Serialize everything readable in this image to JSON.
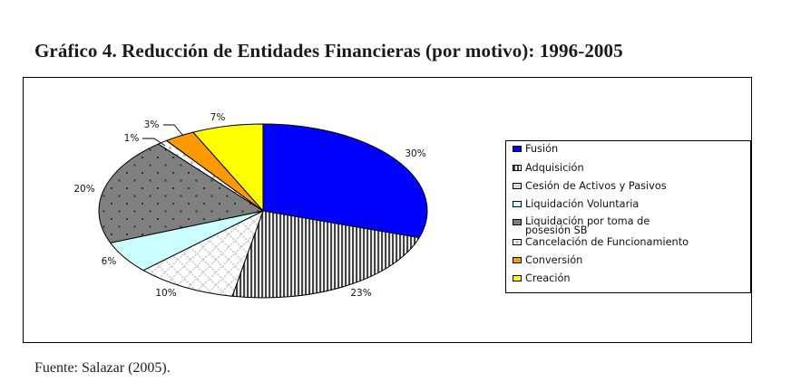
{
  "title": "Gráfico 4. Reducción de Entidades Financieras (por motivo): 1996-2005",
  "source": "Fuente: Salazar (2005).",
  "chart_data": {
    "type": "pie",
    "title": "Gráfico 4. Reducción de Entidades Financieras (por motivo): 1996-2005",
    "start": "12 o'clock, clockwise",
    "legend_position": "right",
    "slices": [
      {
        "label": "Fusión",
        "value": 30,
        "value_label": "30%",
        "color": "#0000ff",
        "pattern": "solid"
      },
      {
        "label": "Adquisición",
        "value": 23,
        "value_label": "23%",
        "color": "#ffffff",
        "pattern": "vertical-stripes"
      },
      {
        "label": "Cesión de Activos y Pasivos",
        "value": 10,
        "value_label": "10%",
        "color": "#ffffff",
        "pattern": "crosshatch"
      },
      {
        "label": "Liquidación Voluntaria",
        "value": 6,
        "value_label": "6%",
        "color": "#ccffff",
        "pattern": "solid"
      },
      {
        "label": "Liquidación por toma de posesión SB",
        "value": 20,
        "value_label": "20%",
        "color": "#808080",
        "pattern": "dots"
      },
      {
        "label": "Cancelación de Funcionamiento",
        "value": 1,
        "value_label": "1%",
        "color": "#ffffff",
        "pattern": "small-gray"
      },
      {
        "label": "Conversión",
        "value": 3,
        "value_label": "3%",
        "color": "#ff9900",
        "pattern": "solid"
      },
      {
        "label": "Creación",
        "value": 7,
        "value_label": "7%",
        "color": "#ffff00",
        "pattern": "solid"
      }
    ],
    "legend": [
      "Fusión",
      "Adquisición",
      "Cesión de Activos y Pasivos",
      "Liquidación Voluntaria",
      "Liquidación por toma de posesión SB",
      "Cancelación de Funcionamiento",
      "Conversión",
      "Creación"
    ]
  }
}
